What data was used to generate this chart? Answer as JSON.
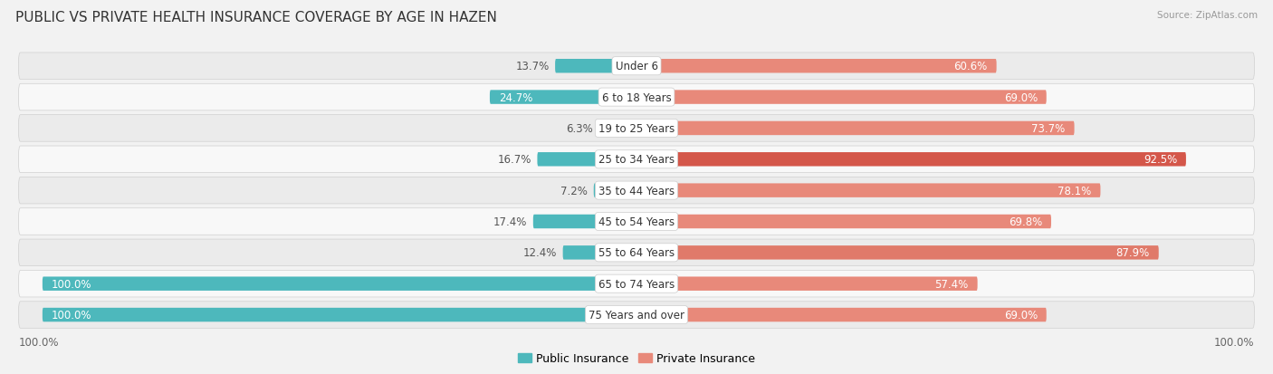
{
  "title": "PUBLIC VS PRIVATE HEALTH INSURANCE COVERAGE BY AGE IN HAZEN",
  "source": "Source: ZipAtlas.com",
  "categories": [
    "Under 6",
    "6 to 18 Years",
    "19 to 25 Years",
    "25 to 34 Years",
    "35 to 44 Years",
    "45 to 54 Years",
    "55 to 64 Years",
    "65 to 74 Years",
    "75 Years and over"
  ],
  "public_values": [
    13.7,
    24.7,
    6.3,
    16.7,
    7.2,
    17.4,
    12.4,
    100.0,
    100.0
  ],
  "private_values": [
    60.6,
    69.0,
    73.7,
    92.5,
    78.1,
    69.8,
    87.9,
    57.4,
    69.0
  ],
  "public_color": "#4db8bc",
  "private_color": "#e8897a",
  "private_color_dark": "#d4574a",
  "bg_color": "#f2f2f2",
  "row_bg_even": "#ebebeb",
  "row_bg_odd": "#f8f8f8",
  "title_fontsize": 11,
  "bar_label_fontsize": 8.5,
  "category_fontsize": 8.5,
  "legend_fontsize": 9,
  "axis_label_fontsize": 8.5
}
